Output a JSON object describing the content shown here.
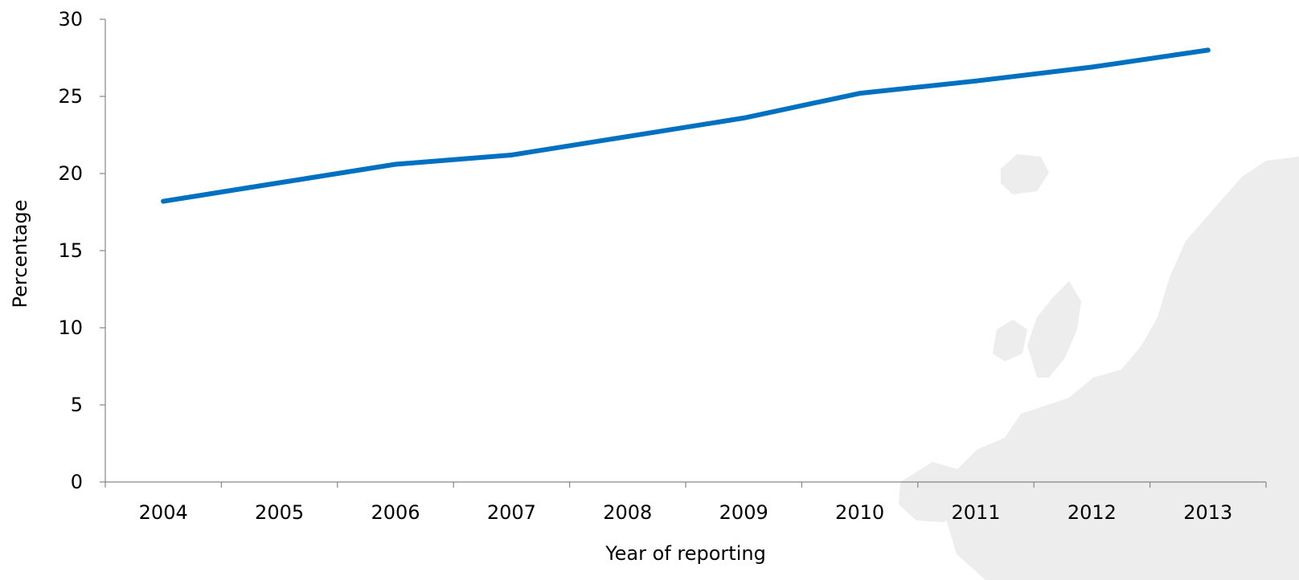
{
  "chart_data": {
    "type": "line",
    "title": "",
    "xlabel": "Year of reporting",
    "ylabel": "Percentage",
    "categories": [
      "2004",
      "2005",
      "2006",
      "2007",
      "2008",
      "2009",
      "2010",
      "2011",
      "2012",
      "2013"
    ],
    "series": [
      {
        "values": [
          18.2,
          19.4,
          20.6,
          21.2,
          22.4,
          23.6,
          25.2,
          26.0,
          26.9,
          28.0
        ],
        "color": "#0070c0"
      }
    ],
    "yticks": [
      "0",
      "5",
      "10",
      "15",
      "20",
      "25",
      "30"
    ],
    "ylim": [
      0,
      30
    ],
    "grid": false,
    "legend": "none",
    "background_watermark": "europe-map"
  }
}
